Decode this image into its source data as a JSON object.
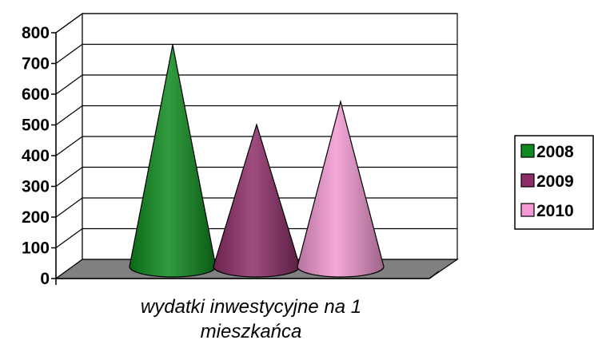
{
  "chart_data": {
    "type": "bar",
    "subtype": "3d-cone",
    "title": "",
    "xlabel_lines": [
      "wydatki inwestycyjne na 1",
      "mieszkańca"
    ],
    "ylabel": "",
    "ylim": [
      0,
      800
    ],
    "y_ticks": [
      "0",
      "100",
      "200",
      "300",
      "400",
      "500",
      "600",
      "700",
      "800"
    ],
    "grid": true,
    "legend": "right",
    "categories": [
      "wydatki inwestycyjne na 1 mieszkańca"
    ],
    "series": [
      {
        "name": "2008",
        "values": [
          730
        ],
        "color": "#0f8a1e"
      },
      {
        "name": "2009",
        "values": [
          470
        ],
        "color": "#8e2e68"
      },
      {
        "name": "2010",
        "values": [
          545
        ],
        "color": "#f39ad4"
      }
    ],
    "wall_color": "#ffffff",
    "floor_color": "#808080"
  }
}
